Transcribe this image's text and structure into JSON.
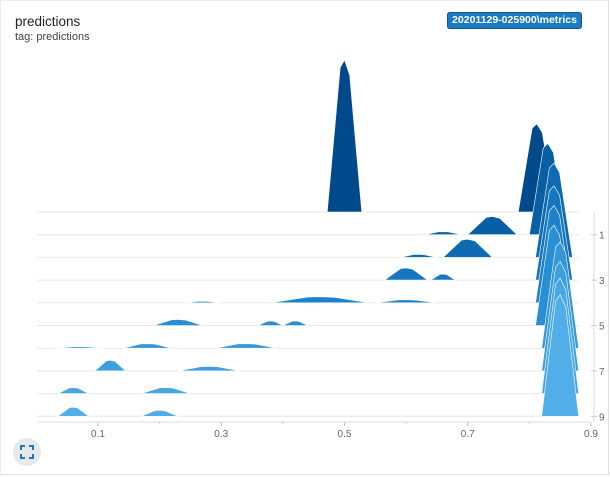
{
  "card": {
    "title": "predictions",
    "tag": "tag: predictions",
    "run_badge": "20201129-025900\\metrics"
  },
  "icons": {
    "expand": "fullscreen-icon"
  },
  "chart_data": {
    "type": "area",
    "mode": "offset-histogram",
    "x_range": [
      0.0,
      0.9
    ],
    "x_ticks": [
      "0.1",
      "0.3",
      "0.5",
      "0.7",
      "0.9"
    ],
    "y_ticks": [
      "1",
      "3",
      "5",
      "7",
      "9"
    ],
    "step_colors": [
      "#004a8c",
      "#0a5ea3",
      "#0e6bb2",
      "#1776c0",
      "#1e82ca",
      "#2a8ed3",
      "#3497da",
      "#3e9fe0",
      "#47a6e5",
      "#52aee9"
    ],
    "steps": [
      {
        "step": 0,
        "peaks": [
          {
            "x": 0.5,
            "w": 0.028,
            "h": 100
          },
          {
            "x": 0.812,
            "w": 0.03,
            "h": 58
          }
        ]
      },
      {
        "step": 1,
        "peaks": [
          {
            "x": 0.74,
            "w": 0.04,
            "h": 12
          },
          {
            "x": 0.66,
            "w": 0.03,
            "h": 2
          },
          {
            "x": 0.83,
            "w": 0.03,
            "h": 60
          }
        ]
      },
      {
        "step": 2,
        "peaks": [
          {
            "x": 0.7,
            "w": 0.04,
            "h": 12
          },
          {
            "x": 0.62,
            "w": 0.03,
            "h": 2
          },
          {
            "x": 0.84,
            "w": 0.03,
            "h": 62
          }
        ]
      },
      {
        "step": 3,
        "peaks": [
          {
            "x": 0.6,
            "w": 0.035,
            "h": 8
          },
          {
            "x": 0.66,
            "w": 0.02,
            "h": 4
          },
          {
            "x": 0.84,
            "w": 0.03,
            "h": 62
          }
        ]
      },
      {
        "step": 4,
        "peaks": [
          {
            "x": 0.27,
            "w": 0.03,
            "h": 1
          },
          {
            "x": 0.46,
            "w": 0.08,
            "h": 4
          },
          {
            "x": 0.6,
            "w": 0.05,
            "h": 2
          },
          {
            "x": 0.84,
            "w": 0.03,
            "h": 64
          }
        ]
      },
      {
        "step": 5,
        "peaks": [
          {
            "x": 0.23,
            "w": 0.04,
            "h": 4
          },
          {
            "x": 0.38,
            "w": 0.02,
            "h": 3
          },
          {
            "x": 0.42,
            "w": 0.02,
            "h": 3
          },
          {
            "x": 0.84,
            "w": 0.03,
            "h": 66
          }
        ]
      },
      {
        "step": 6,
        "peaks": [
          {
            "x": 0.07,
            "w": 0.04,
            "h": 1
          },
          {
            "x": 0.18,
            "w": 0.04,
            "h": 3
          },
          {
            "x": 0.34,
            "w": 0.05,
            "h": 3
          },
          {
            "x": 0.85,
            "w": 0.03,
            "h": 70
          }
        ]
      },
      {
        "step": 7,
        "peaks": [
          {
            "x": 0.12,
            "w": 0.025,
            "h": 7
          },
          {
            "x": 0.28,
            "w": 0.05,
            "h": 3
          },
          {
            "x": 0.85,
            "w": 0.03,
            "h": 72
          }
        ]
      },
      {
        "step": 8,
        "peaks": [
          {
            "x": 0.06,
            "w": 0.025,
            "h": 4
          },
          {
            "x": 0.21,
            "w": 0.04,
            "h": 4
          },
          {
            "x": 0.85,
            "w": 0.03,
            "h": 76
          }
        ]
      },
      {
        "step": 9,
        "peaks": [
          {
            "x": 0.06,
            "w": 0.025,
            "h": 6
          },
          {
            "x": 0.2,
            "w": 0.03,
            "h": 4
          },
          {
            "x": 0.85,
            "w": 0.03,
            "h": 80
          }
        ]
      }
    ]
  }
}
